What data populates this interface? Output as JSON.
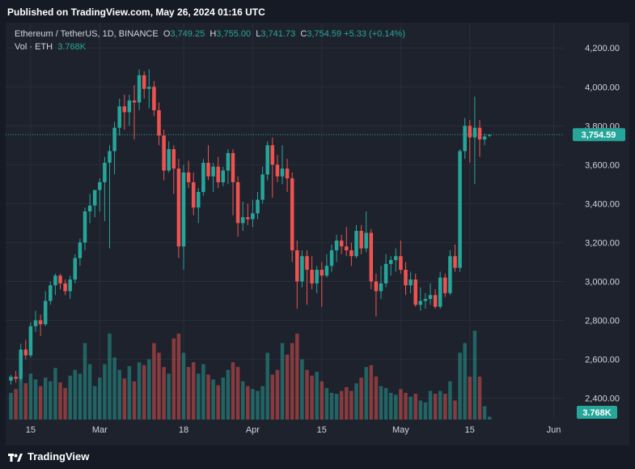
{
  "header": {
    "published": "Published on TradingView.com, May 26, 2024 01:16 UTC"
  },
  "legend": {
    "symbol": "Ethereum / TetherUS, 1D, BINANCE",
    "o_label": "O",
    "o_value": "3,749.25",
    "h_label": "H",
    "h_value": "3,755.00",
    "l_label": "L",
    "l_value": "3,741.73",
    "c_label": "C",
    "c_value": "3,754.59",
    "change": "+5.33 (+0.14%)",
    "vol_label": "Vol · ETH",
    "vol_value": "3.768K"
  },
  "footer": {
    "brand": "TradingView"
  },
  "colors": {
    "up": "#26a69a",
    "down": "#ef5350",
    "background": "#1e222d",
    "grid": "#2a2e39",
    "axis_text": "#d1d4dc"
  },
  "chart_data": {
    "type": "candlestick",
    "symbol": "ETHUSDT",
    "interval": "1D",
    "exchange": "BINANCE",
    "ylim": [
      2290,
      4330
    ],
    "yticks": [
      2400,
      2600,
      2800,
      3000,
      3200,
      3400,
      3600,
      3800,
      4000,
      4200
    ],
    "ytick_labels": [
      "2,400.00",
      "2,600.00",
      "2,800.00",
      "3,000.00",
      "3,200.00",
      "3,400.00",
      "3,600.00",
      "3,800.00",
      "4,000.00",
      "4,200.00"
    ],
    "xticks": [
      {
        "index": 4,
        "label": "15"
      },
      {
        "index": 18,
        "label": "Mar"
      },
      {
        "index": 35,
        "label": "18"
      },
      {
        "index": 49,
        "label": "Apr"
      },
      {
        "index": 63,
        "label": "15"
      },
      {
        "index": 79,
        "label": "May"
      },
      {
        "index": 93,
        "label": "15"
      },
      {
        "index": 110,
        "label": "Jun"
      }
    ],
    "last_price": 3754.59,
    "last_price_label": "3,754.59",
    "last_volume_label": "3.768K",
    "volume_max": 100,
    "candles": [
      {
        "o": 2490,
        "h": 2520,
        "l": 2470,
        "c": 2510,
        "v": 28
      },
      {
        "o": 2510,
        "h": 2540,
        "l": 2480,
        "c": 2500,
        "v": 32
      },
      {
        "o": 2500,
        "h": 2680,
        "l": 2490,
        "c": 2650,
        "v": 55
      },
      {
        "o": 2650,
        "h": 2700,
        "l": 2600,
        "c": 2620,
        "v": 38
      },
      {
        "o": 2620,
        "h": 2790,
        "l": 2610,
        "c": 2770,
        "v": 48
      },
      {
        "o": 2770,
        "h": 2850,
        "l": 2740,
        "c": 2800,
        "v": 42
      },
      {
        "o": 2800,
        "h": 2830,
        "l": 2720,
        "c": 2780,
        "v": 35
      },
      {
        "o": 2780,
        "h": 2950,
        "l": 2770,
        "c": 2900,
        "v": 44
      },
      {
        "o": 2900,
        "h": 3000,
        "l": 2880,
        "c": 2980,
        "v": 40
      },
      {
        "o": 2980,
        "h": 3040,
        "l": 2930,
        "c": 3030,
        "v": 54
      },
      {
        "o": 3030,
        "h": 3040,
        "l": 2960,
        "c": 2990,
        "v": 39
      },
      {
        "o": 2990,
        "h": 3010,
        "l": 2930,
        "c": 2950,
        "v": 33
      },
      {
        "o": 2950,
        "h": 3030,
        "l": 2910,
        "c": 3010,
        "v": 46
      },
      {
        "o": 3010,
        "h": 3140,
        "l": 2990,
        "c": 3120,
        "v": 52
      },
      {
        "o": 3120,
        "h": 3220,
        "l": 3080,
        "c": 3200,
        "v": 48
      },
      {
        "o": 3200,
        "h": 3380,
        "l": 3160,
        "c": 3360,
        "v": 80
      },
      {
        "o": 3360,
        "h": 3450,
        "l": 3300,
        "c": 3390,
        "v": 58
      },
      {
        "o": 3390,
        "h": 3460,
        "l": 3330,
        "c": 3470,
        "v": 35
      },
      {
        "o": 3470,
        "h": 3530,
        "l": 3360,
        "c": 3510,
        "v": 44
      },
      {
        "o": 3510,
        "h": 3640,
        "l": 3310,
        "c": 3610,
        "v": 58
      },
      {
        "o": 3610,
        "h": 3700,
        "l": 3170,
        "c": 3670,
        "v": 90
      },
      {
        "o": 3670,
        "h": 3820,
        "l": 3550,
        "c": 3790,
        "v": 65
      },
      {
        "o": 3790,
        "h": 3940,
        "l": 3750,
        "c": 3900,
        "v": 52
      },
      {
        "o": 3900,
        "h": 3960,
        "l": 3780,
        "c": 3870,
        "v": 43
      },
      {
        "o": 3870,
        "h": 3960,
        "l": 3800,
        "c": 3930,
        "v": 56
      },
      {
        "o": 3930,
        "h": 4010,
        "l": 3730,
        "c": 3920,
        "v": 40
      },
      {
        "o": 3920,
        "h": 4090,
        "l": 3880,
        "c": 4060,
        "v": 60
      },
      {
        "o": 4060,
        "h": 4080,
        "l": 3940,
        "c": 3990,
        "v": 57
      },
      {
        "o": 3990,
        "h": 4090,
        "l": 3890,
        "c": 4000,
        "v": 63
      },
      {
        "o": 4000,
        "h": 4030,
        "l": 3850,
        "c": 3880,
        "v": 80
      },
      {
        "o": 3880,
        "h": 3920,
        "l": 3700,
        "c": 3750,
        "v": 70
      },
      {
        "o": 3750,
        "h": 3780,
        "l": 3520,
        "c": 3570,
        "v": 55
      },
      {
        "o": 3570,
        "h": 3720,
        "l": 3560,
        "c": 3680,
        "v": 48
      },
      {
        "o": 3680,
        "h": 3700,
        "l": 3450,
        "c": 3580,
        "v": 85
      },
      {
        "o": 3580,
        "h": 3630,
        "l": 3120,
        "c": 3180,
        "v": 90
      },
      {
        "o": 3180,
        "h": 3600,
        "l": 3060,
        "c": 3560,
        "v": 70
      },
      {
        "o": 3560,
        "h": 3620,
        "l": 3480,
        "c": 3510,
        "v": 55
      },
      {
        "o": 3510,
        "h": 3560,
        "l": 3340,
        "c": 3380,
        "v": 60
      },
      {
        "o": 3380,
        "h": 3480,
        "l": 3300,
        "c": 3460,
        "v": 48
      },
      {
        "o": 3460,
        "h": 3630,
        "l": 3440,
        "c": 3610,
        "v": 58
      },
      {
        "o": 3610,
        "h": 3700,
        "l": 3520,
        "c": 3540,
        "v": 47
      },
      {
        "o": 3540,
        "h": 3610,
        "l": 3460,
        "c": 3590,
        "v": 42
      },
      {
        "o": 3590,
        "h": 3640,
        "l": 3480,
        "c": 3510,
        "v": 36
      },
      {
        "o": 3510,
        "h": 3590,
        "l": 3490,
        "c": 3570,
        "v": 44
      },
      {
        "o": 3570,
        "h": 3680,
        "l": 3500,
        "c": 3660,
        "v": 52
      },
      {
        "o": 3660,
        "h": 3680,
        "l": 3340,
        "c": 3510,
        "v": 60
      },
      {
        "o": 3510,
        "h": 3540,
        "l": 3230,
        "c": 3300,
        "v": 55
      },
      {
        "o": 3300,
        "h": 3410,
        "l": 3260,
        "c": 3330,
        "v": 40
      },
      {
        "o": 3330,
        "h": 3400,
        "l": 3290,
        "c": 3320,
        "v": 35
      },
      {
        "o": 3320,
        "h": 3420,
        "l": 3280,
        "c": 3350,
        "v": 32
      },
      {
        "o": 3350,
        "h": 3460,
        "l": 3320,
        "c": 3420,
        "v": 30
      },
      {
        "o": 3420,
        "h": 3590,
        "l": 3400,
        "c": 3550,
        "v": 35
      },
      {
        "o": 3550,
        "h": 3720,
        "l": 3520,
        "c": 3700,
        "v": 70
      },
      {
        "o": 3700,
        "h": 3740,
        "l": 3430,
        "c": 3600,
        "v": 47
      },
      {
        "o": 3600,
        "h": 3650,
        "l": 3510,
        "c": 3540,
        "v": 52
      },
      {
        "o": 3540,
        "h": 3700,
        "l": 3500,
        "c": 3580,
        "v": 80
      },
      {
        "o": 3580,
        "h": 3630,
        "l": 3460,
        "c": 3530,
        "v": 68
      },
      {
        "o": 3530,
        "h": 3560,
        "l": 3100,
        "c": 3160,
        "v": 80
      },
      {
        "o": 3160,
        "h": 3210,
        "l": 2860,
        "c": 3000,
        "v": 90
      },
      {
        "o": 3000,
        "h": 3160,
        "l": 2970,
        "c": 3130,
        "v": 63
      },
      {
        "o": 3130,
        "h": 3160,
        "l": 2880,
        "c": 3060,
        "v": 52
      },
      {
        "o": 3060,
        "h": 3130,
        "l": 2960,
        "c": 2990,
        "v": 46
      },
      {
        "o": 2990,
        "h": 3080,
        "l": 2940,
        "c": 3060,
        "v": 50
      },
      {
        "o": 3060,
        "h": 3100,
        "l": 2870,
        "c": 3030,
        "v": 40
      },
      {
        "o": 3030,
        "h": 3140,
        "l": 3020,
        "c": 3080,
        "v": 33
      },
      {
        "o": 3080,
        "h": 3190,
        "l": 3050,
        "c": 3160,
        "v": 28
      },
      {
        "o": 3160,
        "h": 3240,
        "l": 3100,
        "c": 3210,
        "v": 27
      },
      {
        "o": 3210,
        "h": 3240,
        "l": 3140,
        "c": 3180,
        "v": 30
      },
      {
        "o": 3180,
        "h": 3280,
        "l": 3130,
        "c": 3160,
        "v": 34
      },
      {
        "o": 3160,
        "h": 3200,
        "l": 3080,
        "c": 3130,
        "v": 30
      },
      {
        "o": 3130,
        "h": 3290,
        "l": 3120,
        "c": 3260,
        "v": 38
      },
      {
        "o": 3260,
        "h": 3290,
        "l": 3140,
        "c": 3170,
        "v": 44
      },
      {
        "o": 3170,
        "h": 3360,
        "l": 3150,
        "c": 3250,
        "v": 55
      },
      {
        "o": 3250,
        "h": 3270,
        "l": 2960,
        "c": 3000,
        "v": 57
      },
      {
        "o": 3000,
        "h": 3040,
        "l": 2820,
        "c": 2950,
        "v": 45
      },
      {
        "o": 2950,
        "h": 3080,
        "l": 2910,
        "c": 2990,
        "v": 35
      },
      {
        "o": 2990,
        "h": 3140,
        "l": 2970,
        "c": 3090,
        "v": 33
      },
      {
        "o": 3090,
        "h": 3130,
        "l": 3030,
        "c": 3110,
        "v": 28
      },
      {
        "o": 3110,
        "h": 3170,
        "l": 3050,
        "c": 3130,
        "v": 26
      },
      {
        "o": 3130,
        "h": 3210,
        "l": 3040,
        "c": 3060,
        "v": 32
      },
      {
        "o": 3060,
        "h": 3100,
        "l": 2930,
        "c": 2980,
        "v": 28
      },
      {
        "o": 2980,
        "h": 3050,
        "l": 2940,
        "c": 3010,
        "v": 24
      },
      {
        "o": 3010,
        "h": 3040,
        "l": 2870,
        "c": 2880,
        "v": 27
      },
      {
        "o": 2880,
        "h": 2970,
        "l": 2850,
        "c": 2900,
        "v": 20
      },
      {
        "o": 2900,
        "h": 2940,
        "l": 2860,
        "c": 2910,
        "v": 18
      },
      {
        "o": 2910,
        "h": 2990,
        "l": 2880,
        "c": 2930,
        "v": 30
      },
      {
        "o": 2930,
        "h": 2960,
        "l": 2860,
        "c": 2870,
        "v": 27
      },
      {
        "o": 2870,
        "h": 3050,
        "l": 2860,
        "c": 3020,
        "v": 30
      },
      {
        "o": 3020,
        "h": 3040,
        "l": 2920,
        "c": 2940,
        "v": 27
      },
      {
        "o": 2940,
        "h": 3160,
        "l": 2930,
        "c": 3130,
        "v": 40
      },
      {
        "o": 3130,
        "h": 3190,
        "l": 3050,
        "c": 3070,
        "v": 20
      },
      {
        "o": 3070,
        "h": 3680,
        "l": 3050,
        "c": 3670,
        "v": 70
      },
      {
        "o": 3670,
        "h": 3840,
        "l": 3630,
        "c": 3800,
        "v": 80
      },
      {
        "o": 3800,
        "h": 3830,
        "l": 3610,
        "c": 3740,
        "v": 45
      },
      {
        "o": 3740,
        "h": 3950,
        "l": 3500,
        "c": 3790,
        "v": 93
      },
      {
        "o": 3790,
        "h": 3830,
        "l": 3640,
        "c": 3730,
        "v": 45
      },
      {
        "o": 3730,
        "h": 3760,
        "l": 3700,
        "c": 3745,
        "v": 14
      },
      {
        "o": 3749.25,
        "h": 3755,
        "l": 3741.73,
        "c": 3754.59,
        "v": 3
      }
    ]
  }
}
